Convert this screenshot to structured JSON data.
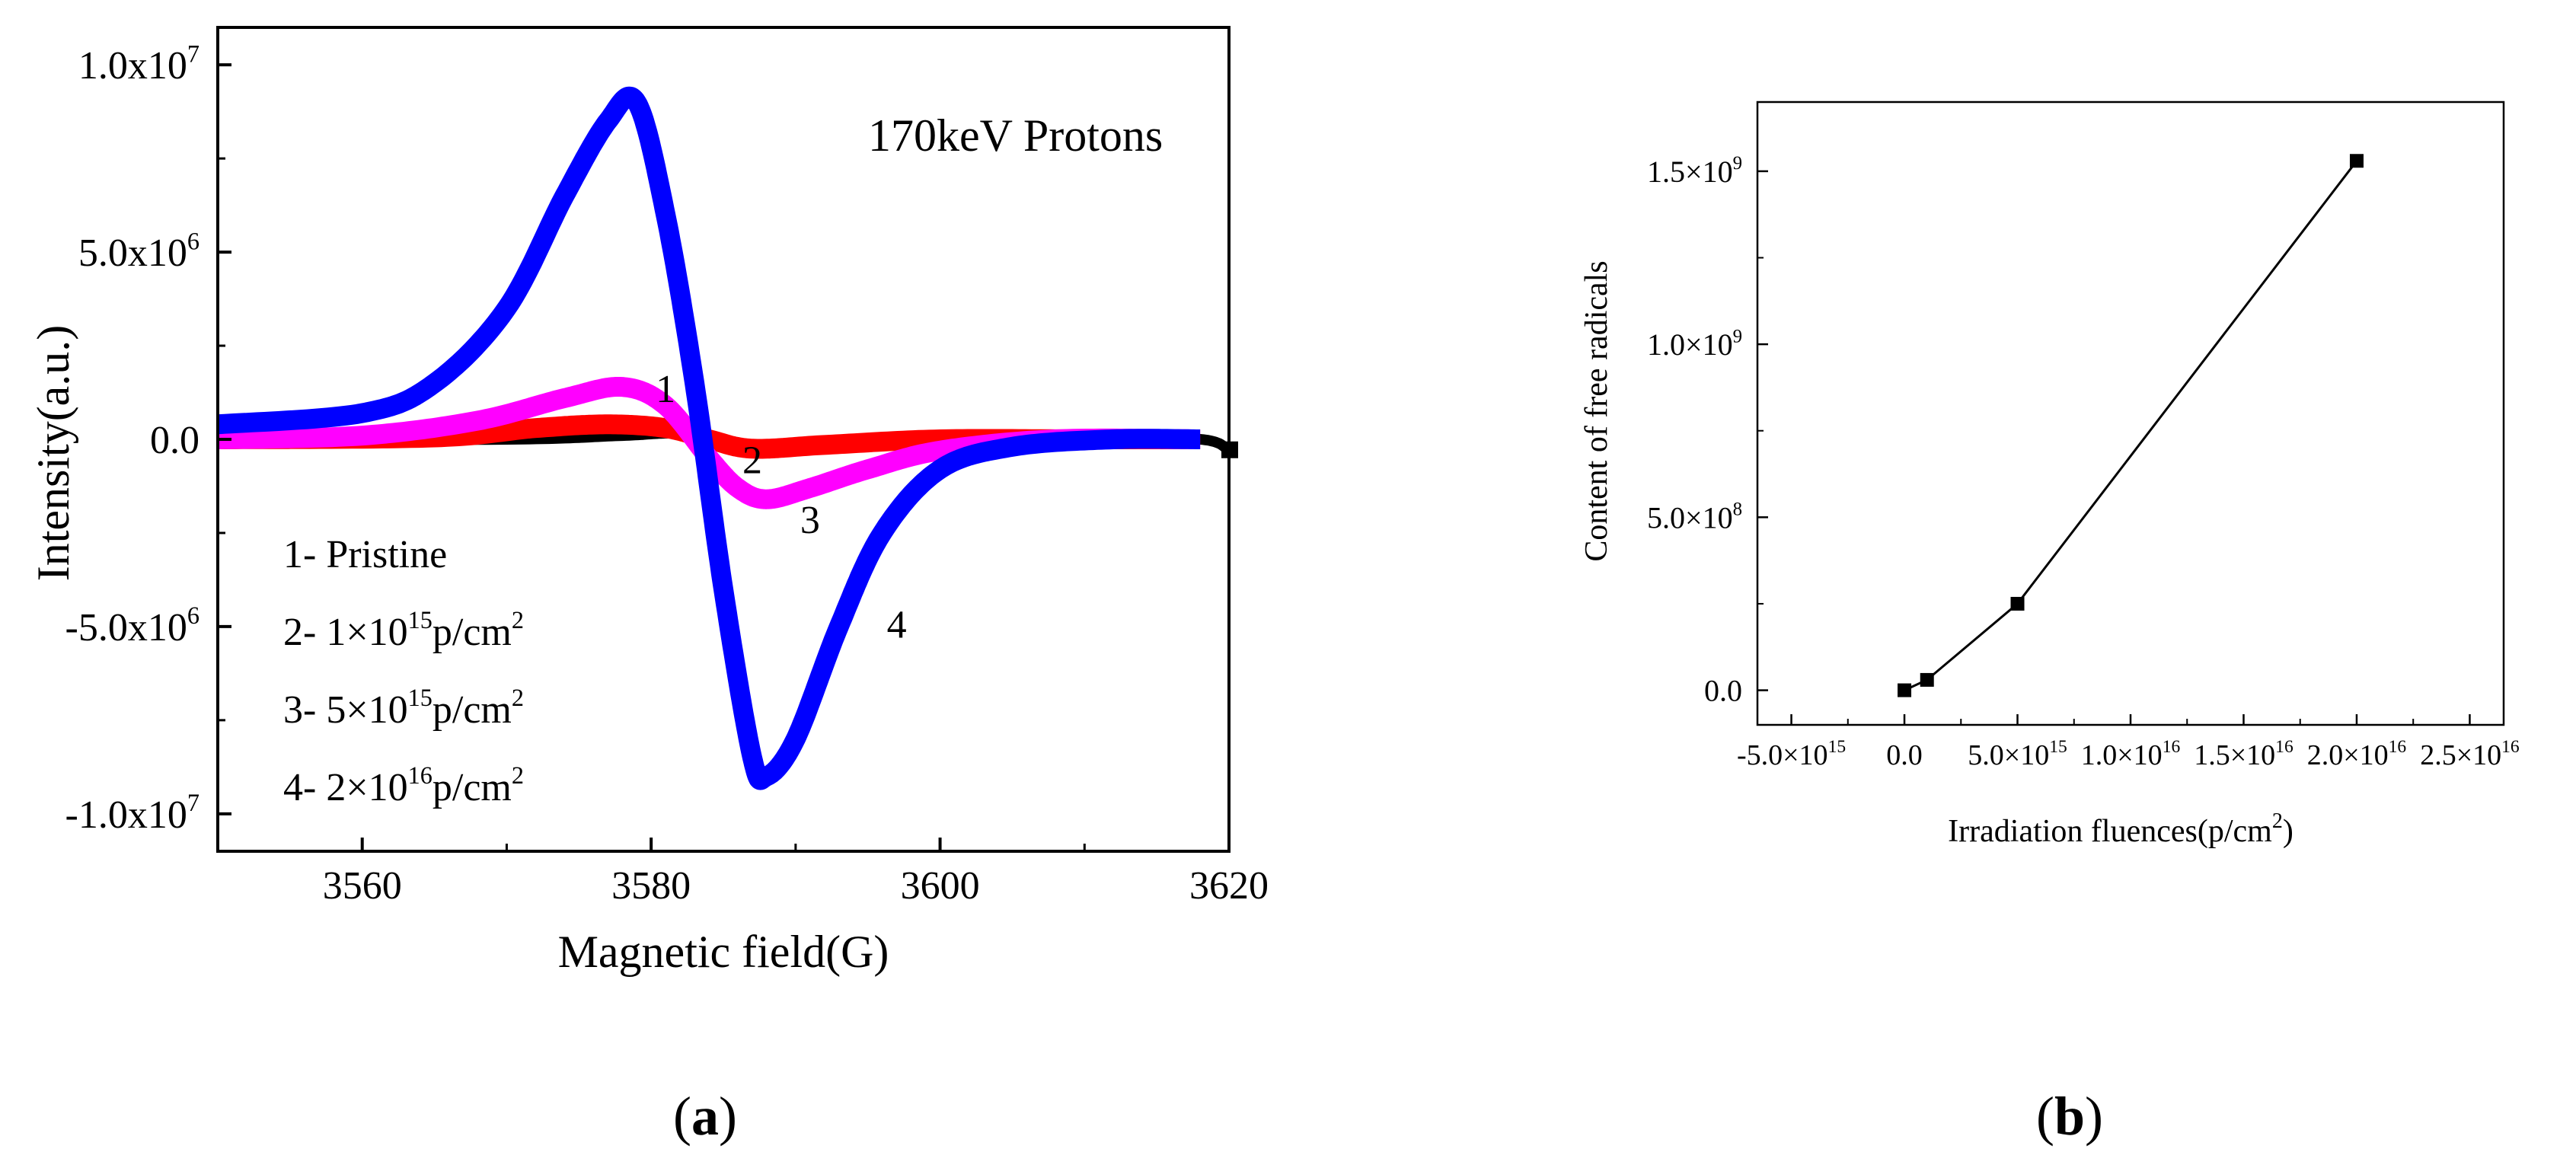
{
  "chart_data": [
    {
      "type": "line",
      "panel_label": "a",
      "title": "170keV Protons",
      "xlabel": "Magnetic field(G)",
      "ylabel": "Intensity(a.u.)",
      "xlim": [
        3550,
        3620
      ],
      "ylim": [
        -11000000,
        11000000
      ],
      "x_ticks": [
        3560,
        3580,
        3600,
        3620
      ],
      "y_ticks": [
        {
          "value": 10000000,
          "mant": "1.0x10",
          "exp": "7"
        },
        {
          "value": 5000000,
          "mant": "5.0x10",
          "exp": "6"
        },
        {
          "value": 0,
          "mant": "0.0",
          "exp": ""
        },
        {
          "value": -5000000,
          "mant": "-5.0x10",
          "exp": "6"
        },
        {
          "value": -10000000,
          "mant": "-1.0x10",
          "exp": "7"
        }
      ],
      "legend": [
        {
          "num": "1",
          "text": "- Pristine",
          "exp": "",
          "tail": ""
        },
        {
          "num": "2",
          "text": "- 1×10",
          "exp": "15",
          "tail": "p/cm",
          "tail_exp": "2"
        },
        {
          "num": "3",
          "text": "- 5×10",
          "exp": "15",
          "tail": "p/cm",
          "tail_exp": "2"
        },
        {
          "num": "4",
          "text": "- 2×10",
          "exp": "16",
          "tail": "p/cm",
          "tail_exp": "2"
        }
      ],
      "series": [
        {
          "name": "1",
          "color": "#000000",
          "x": [
            3550,
            3570,
            3578,
            3582,
            3586,
            3590,
            3600,
            3610,
            3618,
            3620
          ],
          "y": [
            0,
            0,
            100000,
            150000,
            -150000,
            -100000,
            0,
            0,
            0,
            -300000
          ]
        },
        {
          "name": "2",
          "color": "#ff0000",
          "x": [
            3550,
            3565,
            3572,
            3577,
            3581,
            3584,
            3587,
            3592,
            3600,
            3610,
            3618
          ],
          "y": [
            0,
            50000,
            300000,
            400000,
            300000,
            0,
            -250000,
            -150000,
            0,
            0,
            0
          ]
        },
        {
          "name": "3",
          "color": "#ff00ff",
          "x": [
            3550,
            3560,
            3568,
            3574,
            3578,
            3581,
            3584,
            3586,
            3588,
            3591,
            3595,
            3600,
            3608,
            3618
          ],
          "y": [
            0,
            100000,
            500000,
            1100000,
            1400000,
            900000,
            -500000,
            -1300000,
            -1600000,
            -1300000,
            -800000,
            -300000,
            0,
            0
          ]
        },
        {
          "name": "4",
          "color": "#0000ff",
          "x": [
            3550,
            3560,
            3565,
            3570,
            3574,
            3577,
            3579,
            3581,
            3583,
            3585,
            3587,
            3588,
            3590,
            3593,
            3596,
            3600,
            3605,
            3612,
            3618
          ],
          "y": [
            400000,
            700000,
            1500000,
            3500000,
            6500000,
            8500000,
            9000000,
            6000000,
            1500000,
            -4000000,
            -8500000,
            -9000000,
            -8000000,
            -5000000,
            -2500000,
            -800000,
            -200000,
            0,
            0
          ]
        }
      ],
      "curve_labels": [
        {
          "text": "1",
          "x": 3581,
          "y": 1000000
        },
        {
          "text": "2",
          "x": 3587,
          "y": -900000
        },
        {
          "text": "3",
          "x": 3591,
          "y": -2500000
        },
        {
          "text": "4",
          "x": 3597,
          "y": -5300000
        }
      ]
    },
    {
      "type": "line",
      "panel_label": "b",
      "xlabel": "Irradiation fluences(p/cm",
      "xlabel_exp": "2",
      "xlabel_tail": ")",
      "ylabel": "Content of free radicals",
      "xlim": [
        -6500000000000000,
        26500000000000000
      ],
      "ylim": [
        -100000000,
        1700000000
      ],
      "x_ticks": [
        {
          "value": -5000000000000000,
          "mant": "-5.0×10",
          "exp": "15"
        },
        {
          "value": 0,
          "mant": "0.0",
          "exp": ""
        },
        {
          "value": 5000000000000000,
          "mant": "5.0×10",
          "exp": "15"
        },
        {
          "value": 10000000000000000,
          "mant": "1.0×10",
          "exp": "16"
        },
        {
          "value": 15000000000000000,
          "mant": "1.5×10",
          "exp": "16"
        },
        {
          "value": 20000000000000000,
          "mant": "2.0×10",
          "exp": "16"
        },
        {
          "value": 25000000000000000,
          "mant": "2.5×10",
          "exp": "16"
        }
      ],
      "y_ticks": [
        {
          "value": 1500000000,
          "mant": "1.5×10",
          "exp": "9"
        },
        {
          "value": 1000000000,
          "mant": "1.0×10",
          "exp": "9"
        },
        {
          "value": 500000000,
          "mant": "5.0×10",
          "exp": "8"
        },
        {
          "value": 0,
          "mant": "0.0",
          "exp": ""
        }
      ],
      "series": [
        {
          "name": "Content of free radicals",
          "color": "#000000",
          "x": [
            0,
            1000000000000000,
            5000000000000000,
            20000000000000000
          ],
          "y": [
            0,
            30000000,
            250000000,
            1530000000
          ]
        }
      ]
    }
  ]
}
